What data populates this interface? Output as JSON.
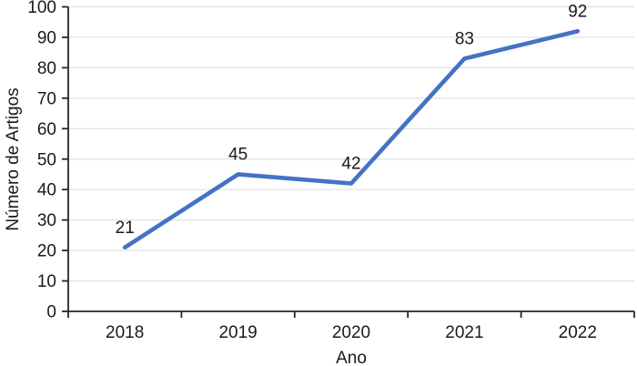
{
  "chart_data": {
    "type": "line",
    "title": "",
    "xlabel": "Ano",
    "ylabel": "Número de Artigos",
    "categories": [
      "2018",
      "2019",
      "2020",
      "2021",
      "2022"
    ],
    "series": [
      {
        "name": "Número de Artigos",
        "values": [
          21,
          45,
          42,
          83,
          92
        ]
      }
    ],
    "data_labels_shown": true,
    "ylim": [
      0,
      100
    ],
    "ytick_step": 10,
    "ytick_labels": [
      "0",
      "10",
      "20",
      "30",
      "40",
      "50",
      "60",
      "70",
      "80",
      "90",
      "100"
    ],
    "grid": "horizontal",
    "legend": "none",
    "colors": {
      "line": "#4472C4",
      "grid": "#E1E1E1",
      "axis": "#262626",
      "text": "#1A1A1A",
      "background": "#FFFFFF"
    }
  }
}
